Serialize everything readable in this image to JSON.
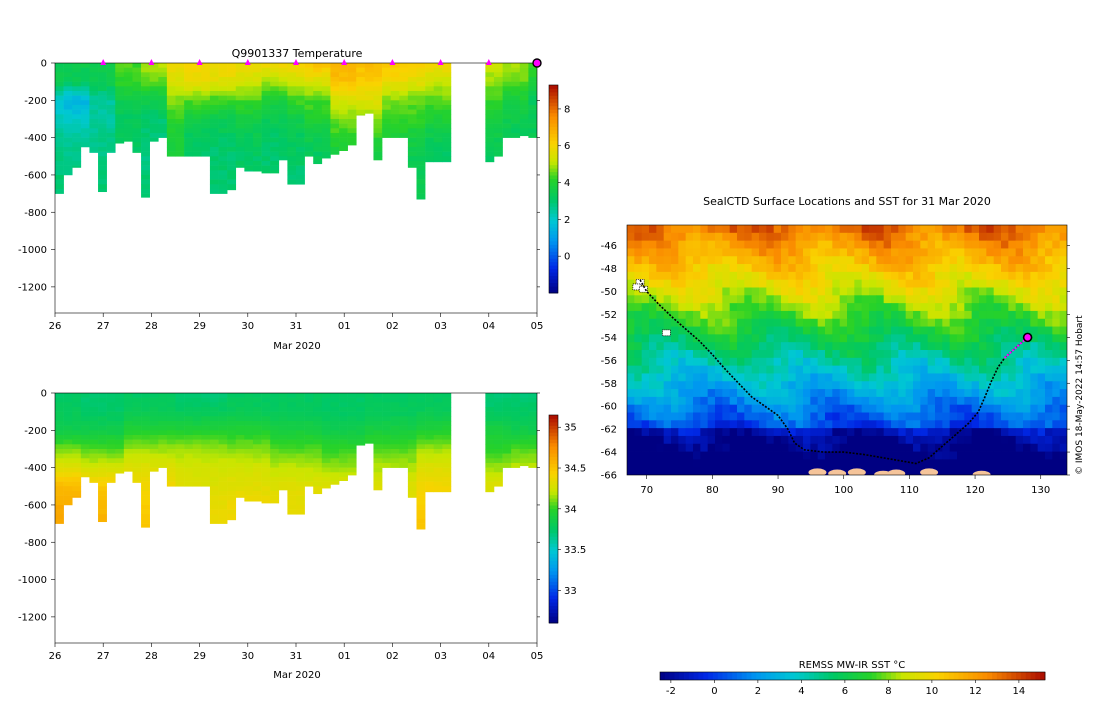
{
  "chart_data": [
    {
      "type": "heatmap",
      "id": "temperature",
      "title": "Q9901337  Temperature",
      "xlabel": "Mar 2020",
      "ylabel": "",
      "x_ticks": [
        "26",
        "27",
        "28",
        "29",
        "30",
        "31",
        "01",
        "02",
        "03",
        "04",
        "05"
      ],
      "x_range_days": [
        0,
        10
      ],
      "y_ticks": [
        0,
        -200,
        -400,
        -600,
        -800,
        -1000,
        -1200
      ],
      "ylim": [
        -1340,
        0
      ],
      "surface_marker_days": [
        1,
        2,
        3,
        4,
        5,
        6,
        7,
        8,
        9
      ],
      "last_profile_day": 10,
      "colorbar": {
        "min": -2,
        "max": 9.3,
        "ticks": [
          0,
          2,
          4,
          6,
          8
        ],
        "palette": "jet"
      },
      "profile_max_depths": [
        700,
        600,
        560,
        450,
        480,
        690,
        480,
        430,
        420,
        480,
        720,
        420,
        400,
        500,
        500,
        500,
        500,
        500,
        700,
        700,
        680,
        560,
        580,
        580,
        590,
        590,
        520,
        650,
        650,
        500,
        540,
        510,
        490,
        470,
        440,
        280,
        270,
        520,
        400,
        400,
        400,
        560,
        730,
        530,
        530,
        530,
        0,
        0,
        0,
        0,
        530,
        500,
        400,
        400,
        390,
        400
      ],
      "profiles": [
        {
          "day": 0.0,
          "depths": [
            0,
            100,
            200,
            300,
            400,
            500,
            600,
            700
          ],
          "temps": [
            3.5,
            3.4,
            2.0,
            2.2,
            2.6,
            2.8,
            2.9,
            3.0
          ]
        },
        {
          "day": 0.5,
          "depths": [
            0,
            100,
            200,
            300,
            400,
            500,
            600
          ],
          "temps": [
            3.5,
            3.3,
            1.5,
            2.0,
            2.5,
            2.7,
            2.9
          ]
        },
        {
          "day": 1.0,
          "depths": [
            0,
            100,
            200,
            300,
            400,
            500,
            600,
            700
          ],
          "temps": [
            3.5,
            3.5,
            2.5,
            2.5,
            2.7,
            2.8,
            2.9,
            3.0
          ]
        },
        {
          "day": 1.5,
          "depths": [
            0,
            100,
            200,
            300,
            400,
            500
          ],
          "temps": [
            4.4,
            4.2,
            3.5,
            3.2,
            3.2,
            3.2
          ]
        },
        {
          "day": 2.0,
          "depths": [
            0,
            100,
            200,
            300,
            400,
            500,
            600,
            700
          ],
          "temps": [
            5.0,
            4.5,
            3.5,
            3.0,
            2.9,
            2.8,
            2.9,
            3.0
          ]
        },
        {
          "day": 2.5,
          "depths": [
            0,
            100,
            200,
            300,
            400,
            500
          ],
          "temps": [
            5.8,
            5.5,
            4.7,
            4.2,
            3.8,
            3.8
          ]
        },
        {
          "day": 3.0,
          "depths": [
            0,
            100,
            200,
            300,
            400,
            500,
            600,
            700
          ],
          "temps": [
            6.0,
            5.8,
            4.5,
            3.6,
            3.2,
            3.1,
            3.0,
            3.1
          ]
        },
        {
          "day": 3.5,
          "depths": [
            0,
            100,
            200,
            300,
            400,
            500,
            600
          ],
          "temps": [
            6.0,
            5.6,
            4.3,
            3.5,
            3.1,
            3.0,
            3.0
          ]
        },
        {
          "day": 4.0,
          "depths": [
            0,
            100,
            200,
            300,
            400,
            500,
            600
          ],
          "temps": [
            5.8,
            5.3,
            4.4,
            3.7,
            3.3,
            3.1,
            3.0
          ]
        },
        {
          "day": 4.5,
          "depths": [
            0,
            100,
            200,
            300,
            400,
            500,
            600
          ],
          "temps": [
            6.0,
            5.0,
            3.8,
            3.4,
            3.1,
            3.0,
            3.0
          ]
        },
        {
          "day": 5.0,
          "depths": [
            0,
            100,
            200,
            300,
            400,
            500,
            600
          ],
          "temps": [
            6.0,
            5.3,
            4.3,
            3.6,
            3.2,
            3.1,
            3.0
          ]
        },
        {
          "day": 5.5,
          "depths": [
            0,
            100,
            200,
            300,
            400,
            500,
            600
          ],
          "temps": [
            6.5,
            5.5,
            4.4,
            4.0,
            3.5,
            3.2,
            3.1
          ]
        },
        {
          "day": 6.0,
          "depths": [
            0,
            100,
            200,
            300,
            400,
            500
          ],
          "temps": [
            6.8,
            6.5,
            5.4,
            4.6,
            4.2,
            3.6
          ]
        },
        {
          "day": 6.5,
          "depths": [
            0,
            100,
            200,
            300,
            400,
            500
          ],
          "temps": [
            6.6,
            6.2,
            5.5,
            4.8,
            4.1,
            3.6
          ]
        },
        {
          "day": 7.0,
          "depths": [
            0,
            100,
            200,
            300,
            400,
            500
          ],
          "temps": [
            6.4,
            5.8,
            4.7,
            4.3,
            3.8,
            3.5
          ]
        },
        {
          "day": 7.5,
          "depths": [
            0,
            100,
            200,
            300,
            400,
            500
          ],
          "temps": [
            6.2,
            5.6,
            4.6,
            4.2,
            3.7,
            3.4
          ]
        },
        {
          "day": 8.0,
          "depths": [
            0,
            100,
            200,
            300,
            400,
            500,
            600,
            700
          ],
          "temps": [
            6.0,
            5.2,
            4.5,
            3.9,
            3.4,
            3.1,
            3.0,
            3.0
          ]
        },
        {
          "day": 8.5,
          "depths": [
            0,
            100,
            200,
            300,
            400,
            500
          ],
          "temps": [
            5.5,
            5.2,
            4.7,
            4.1,
            3.6,
            3.3
          ]
        },
        {
          "day": 9.0,
          "depths": [
            0,
            100,
            200,
            300,
            400,
            500
          ],
          "temps": [
            5.3,
            4.8,
            4.2,
            3.9,
            3.5,
            3.2
          ]
        },
        {
          "day": 9.5,
          "depths": [
            0,
            100,
            200,
            300,
            400,
            500
          ],
          "temps": [
            4.9,
            4.5,
            3.8,
            3.5,
            3.2,
            3.1
          ]
        },
        {
          "day": 10.0,
          "depths": [
            0,
            100,
            200,
            300,
            400
          ],
          "temps": [
            4.4,
            3.8,
            3.3,
            3.3,
            3.3
          ]
        }
      ]
    },
    {
      "type": "heatmap",
      "id": "salinity",
      "title": "",
      "xlabel": "Mar 2020",
      "ylabel": "",
      "x_ticks": [
        "26",
        "27",
        "28",
        "29",
        "30",
        "31",
        "01",
        "02",
        "03",
        "04",
        "05"
      ],
      "x_range_days": [
        0,
        10
      ],
      "y_ticks": [
        0,
        -200,
        -400,
        -600,
        -800,
        -1000,
        -1200
      ],
      "ylim": [
        -1340,
        0
      ],
      "colorbar": {
        "min": 32.6,
        "max": 35.15,
        "ticks": [
          33,
          33.5,
          34,
          34.5,
          35
        ],
        "tick_labels": [
          "33",
          "33.5",
          "34",
          "34.5",
          "35"
        ],
        "palette": "jet"
      },
      "profiles": [
        {
          "day": 0.0,
          "depths": [
            0,
            100,
            200,
            300,
            400,
            500,
            600,
            700
          ],
          "sal": [
            33.75,
            33.78,
            33.85,
            34.1,
            34.3,
            34.55,
            34.62,
            34.65
          ]
        },
        {
          "day": 1.0,
          "depths": [
            0,
            100,
            200,
            300,
            400,
            500,
            600,
            700
          ],
          "sal": [
            33.72,
            33.75,
            33.85,
            34.05,
            34.25,
            34.48,
            34.55,
            34.6
          ]
        },
        {
          "day": 2.0,
          "depths": [
            0,
            100,
            200,
            300,
            400,
            500,
            600,
            700
          ],
          "sal": [
            33.75,
            33.8,
            33.95,
            34.15,
            34.3,
            34.4,
            34.45,
            34.5
          ]
        },
        {
          "day": 3.0,
          "depths": [
            0,
            100,
            200,
            300,
            400,
            500,
            600,
            700
          ],
          "sal": [
            33.7,
            33.78,
            33.95,
            34.15,
            34.25,
            34.3,
            34.35,
            34.38
          ]
        },
        {
          "day": 4.0,
          "depths": [
            0,
            100,
            200,
            300,
            400,
            500,
            600
          ],
          "sal": [
            33.75,
            33.8,
            33.95,
            34.12,
            34.25,
            34.32,
            34.38
          ]
        },
        {
          "day": 5.0,
          "depths": [
            0,
            100,
            200,
            300,
            400,
            500,
            600
          ],
          "sal": [
            33.75,
            33.78,
            33.9,
            34.05,
            34.2,
            34.3,
            34.35
          ]
        },
        {
          "day": 6.0,
          "depths": [
            0,
            100,
            200,
            300,
            400,
            500
          ],
          "sal": [
            33.75,
            33.75,
            33.85,
            34.0,
            34.15,
            34.3
          ]
        },
        {
          "day": 7.0,
          "depths": [
            0,
            100,
            200,
            300,
            400,
            500
          ],
          "sal": [
            33.75,
            33.78,
            33.9,
            34.05,
            34.18,
            34.3
          ]
        },
        {
          "day": 8.0,
          "depths": [
            0,
            100,
            200,
            300,
            400,
            500,
            600,
            700
          ],
          "sal": [
            33.75,
            33.8,
            33.95,
            34.15,
            34.3,
            34.4,
            34.45,
            34.5
          ]
        },
        {
          "day": 9.0,
          "depths": [
            0,
            100,
            200,
            300,
            400,
            500
          ],
          "sal": [
            33.7,
            33.75,
            33.9,
            34.0,
            34.15,
            34.3
          ]
        },
        {
          "day": 10.0,
          "depths": [
            0,
            100,
            200,
            300,
            400
          ],
          "sal": [
            33.7,
            33.75,
            33.85,
            34.05,
            34.2
          ]
        }
      ]
    },
    {
      "type": "heatmap",
      "id": "sst_map",
      "title": "SealCTD Surface Locations and SST for 31 Mar 2020",
      "xlabel": "",
      "ylabel": "",
      "x_ticks": [
        70,
        80,
        90,
        100,
        110,
        120,
        130
      ],
      "y_ticks": [
        -46,
        -48,
        -50,
        -52,
        -54,
        -56,
        -58,
        -60,
        -62,
        -64,
        -66
      ],
      "xlim": [
        67,
        134
      ],
      "ylim": [
        -66,
        -44.2
      ],
      "credit": "© IMOS 18-May-2022 14:57 Hobart",
      "colorbar": {
        "label": "REMSS MW-IR SST °C",
        "min": -2.5,
        "max": 15.2,
        "ticks": [
          -2,
          0,
          2,
          4,
          6,
          8,
          10,
          12,
          14
        ],
        "palette": "jet"
      },
      "track": [
        [
          69,
          -49
        ],
        [
          70,
          -50
        ],
        [
          72,
          -51.2
        ],
        [
          74,
          -52.3
        ],
        [
          76,
          -53.3
        ],
        [
          78,
          -54.3
        ],
        [
          80,
          -55.5
        ],
        [
          82,
          -56.8
        ],
        [
          84,
          -58
        ],
        [
          86,
          -59.2
        ],
        [
          88,
          -60
        ],
        [
          90,
          -60.8
        ],
        [
          91.5,
          -62
        ],
        [
          92.5,
          -63.2
        ],
        [
          94,
          -63.8
        ],
        [
          97,
          -64
        ],
        [
          100,
          -64
        ],
        [
          103,
          -64.2
        ],
        [
          106,
          -64.5
        ],
        [
          109,
          -64.8
        ],
        [
          111,
          -65
        ],
        [
          113,
          -64.5
        ],
        [
          115,
          -63.5
        ],
        [
          117,
          -62.5
        ],
        [
          119,
          -61.5
        ],
        [
          120.5,
          -60.5
        ],
        [
          121.5,
          -59.2
        ],
        [
          122.5,
          -57.8
        ],
        [
          123.5,
          -56.6
        ],
        [
          124.5,
          -55.8
        ],
        [
          126,
          -55
        ],
        [
          127,
          -54.5
        ],
        [
          128,
          -54
        ]
      ],
      "current_position": [
        128,
        -54
      ],
      "ice_patches": [
        [
          69,
          -49.2
        ],
        [
          68.5,
          -49.6
        ],
        [
          69.5,
          -49.8
        ],
        [
          73,
          -53.6
        ]
      ],
      "land_patches": [
        [
          96,
          -65.6
        ],
        [
          99,
          -65.7
        ],
        [
          102,
          -65.6
        ],
        [
          106,
          -65.8
        ],
        [
          108,
          -65.7
        ],
        [
          113,
          -65.6
        ],
        [
          121,
          -65.8
        ]
      ]
    }
  ]
}
